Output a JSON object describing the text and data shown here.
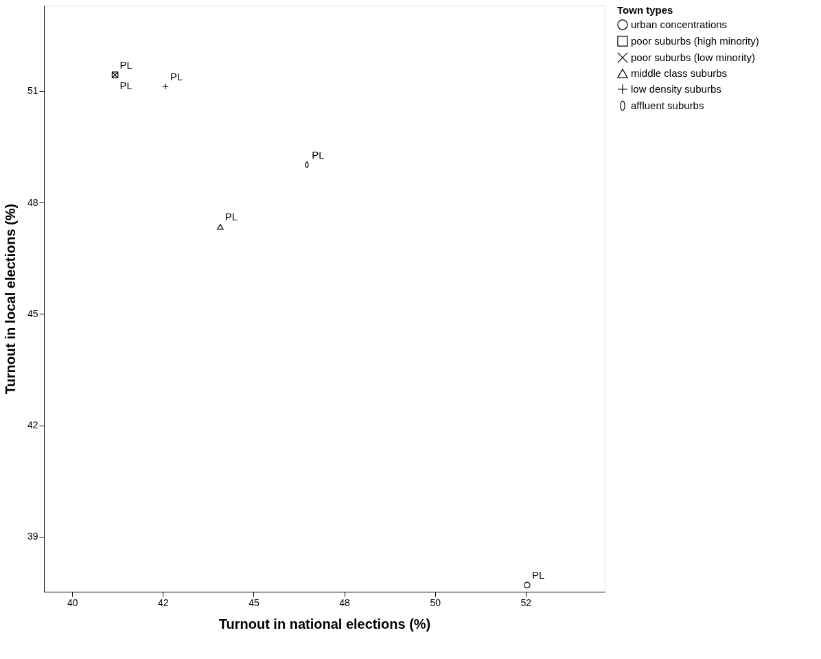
{
  "chart_data": {
    "type": "scatter",
    "xlabel": "Turnout in national elections (%)",
    "ylabel": "Turnout in local elections (%)",
    "legend_title": "Town types",
    "legend": "top right",
    "grid": false,
    "xlim": [
      39.22,
      54.68
    ],
    "ylim": [
      37.52,
      53.31
    ],
    "xticks": [
      40,
      {
        "value": 42.5,
        "label": "42"
      },
      45,
      {
        "value": 47.5,
        "label": "48"
      },
      50,
      {
        "value": 52.5,
        "label": "52"
      }
    ],
    "yticks": [
      39,
      42,
      45,
      48,
      51
    ],
    "series": [
      {
        "name": "urban concentrations",
        "color": "#000000",
        "marker": "circle",
        "x": [
          52.54
        ],
        "values": [
          37.7
        ]
      },
      {
        "name": "poor suburbs (high minority)",
        "color": "#000000",
        "marker": "square",
        "x": [
          41.18
        ],
        "values": [
          51.44
        ]
      },
      {
        "name": "poor suburbs (low minority)",
        "color": "#000000",
        "marker": "x",
        "x": [
          41.18
        ],
        "values": [
          51.44
        ]
      },
      {
        "name": "middle class suburbs",
        "color": "#000000",
        "marker": "triangle",
        "x": [
          44.08
        ],
        "values": [
          47.35
        ]
      },
      {
        "name": "low density suburbs",
        "color": "#000000",
        "marker": "plus",
        "x": [
          42.57
        ],
        "values": [
          51.13
        ]
      },
      {
        "name": "affluent suburbs",
        "color": "#000000",
        "x": [
          46.47
        ],
        "values": [
          49.02
        ]
      }
    ],
    "annotations": [
      {
        "text": "PL",
        "x": 52.54,
        "y": 37.7
      },
      {
        "text": "PL",
        "x": 41.18,
        "y": 51.44
      },
      {
        "text": "PL",
        "x": 41.18,
        "y": 51.44
      },
      {
        "text": "PL",
        "x": 44.08,
        "y": 47.35
      },
      {
        "text": "PL",
        "x": 42.57,
        "y": 51.13
      },
      {
        "text": "PL",
        "x": 46.47,
        "y": 49.02
      }
    ]
  }
}
